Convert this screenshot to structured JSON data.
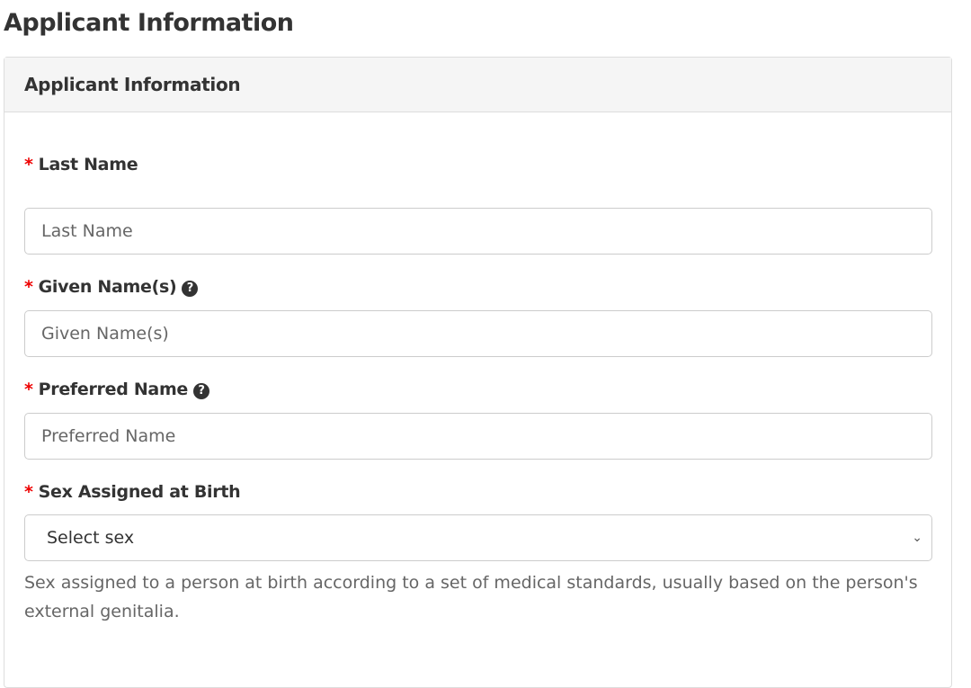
{
  "page_title": "Applicant Information",
  "card": {
    "title": "Applicant Information"
  },
  "fields": [
    {
      "label": "Last Name",
      "placeholder": "Last Name",
      "required": "*"
    },
    {
      "label": "Given Name(s)",
      "placeholder": "Given Name(s)",
      "required": "*",
      "help_icon": "question-circle-icon"
    },
    {
      "label": "Preferred Name",
      "placeholder": "Preferred Name",
      "required": "*",
      "help_icon": "question-circle-icon"
    },
    {
      "label": "Sex Assigned at Birth",
      "selected": "Select sex",
      "required": "*",
      "help_text": "Sex assigned to a person at birth according to a set of medical standards, usually based on the person's external genitalia."
    }
  ],
  "colors": {
    "required": "#ee0000"
  }
}
